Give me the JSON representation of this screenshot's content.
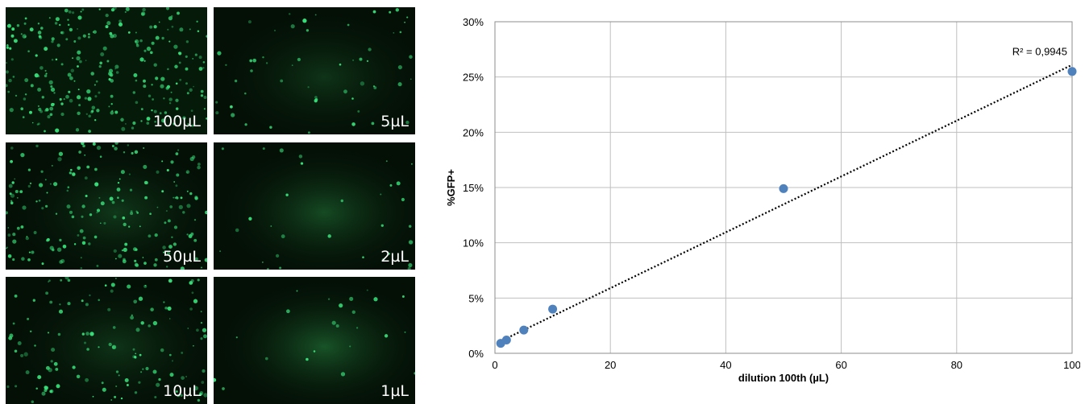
{
  "panels": [
    {
      "id": "p100",
      "label": "100µL",
      "density": 1.0,
      "glow": 0.0
    },
    {
      "id": "p5",
      "label": "5µL",
      "density": 0.18,
      "glow": 0.1
    },
    {
      "id": "p50",
      "label": "50µL",
      "density": 0.75,
      "glow": 0.15
    },
    {
      "id": "p2",
      "label": "2µL",
      "density": 0.08,
      "glow": 0.35
    },
    {
      "id": "p10",
      "label": "10µL",
      "density": 0.5,
      "glow": 0.1
    },
    {
      "id": "p1",
      "label": "1µL",
      "density": 0.05,
      "glow": 0.45
    }
  ],
  "colors": {
    "cell": "#37e07a",
    "point": "#4f81bd",
    "grid": "#bfbfbf",
    "trend": "#000000"
  },
  "chart_data": {
    "type": "scatter",
    "xlabel": "dilution 100th (µL)",
    "ylabel": "%GFP+",
    "xlim": [
      0,
      100
    ],
    "ylim": [
      0,
      30
    ],
    "xticks": [
      "0",
      "20",
      "40",
      "60",
      "80",
      "100"
    ],
    "yticks": [
      "0%",
      "5%",
      "10%",
      "15%",
      "20%",
      "25%",
      "30%"
    ],
    "points": [
      {
        "x": 1,
        "y": 0.9
      },
      {
        "x": 2,
        "y": 1.2
      },
      {
        "x": 5,
        "y": 2.1
      },
      {
        "x": 10,
        "y": 4.0
      },
      {
        "x": 50,
        "y": 14.9
      },
      {
        "x": 100,
        "y": 25.5
      }
    ],
    "trendline": {
      "type": "linear",
      "x": [
        1,
        100
      ],
      "y": [
        1.1,
        26.1
      ],
      "label": "R² = 0,9945"
    },
    "grid": true,
    "legend": "none"
  }
}
